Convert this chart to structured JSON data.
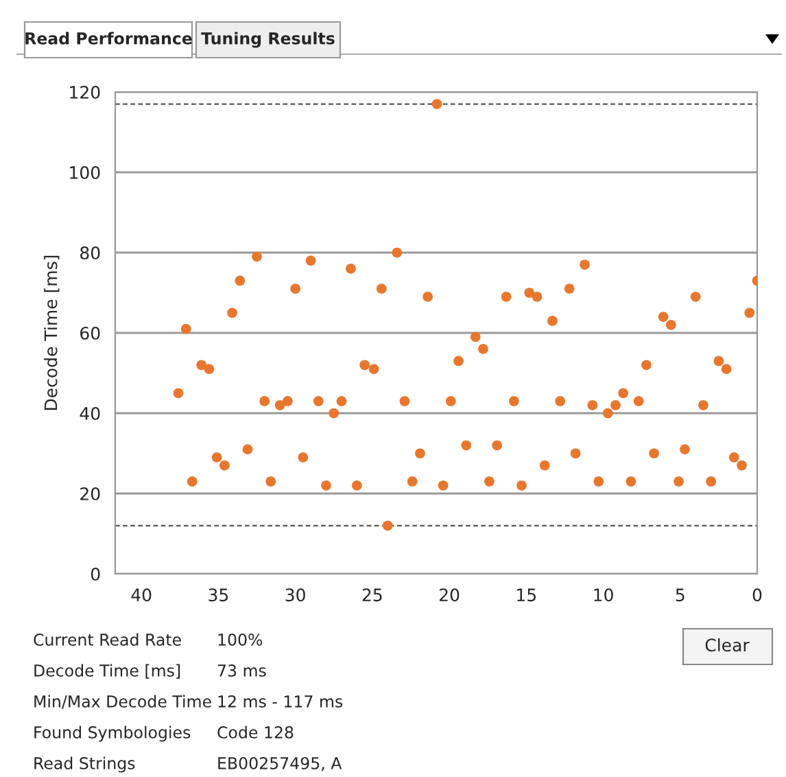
{
  "chart_data": {
    "type": "scatter",
    "ylabel": "Decode Time [ms]",
    "x": [
      37.6,
      37.1,
      36.7,
      36.1,
      35.6,
      35.1,
      34.6,
      34.1,
      33.6,
      33.1,
      32.5,
      32.0,
      31.6,
      31.0,
      30.5,
      30.0,
      29.5,
      29.0,
      28.5,
      28.0,
      27.5,
      27.0,
      26.4,
      26.0,
      25.5,
      24.9,
      24.4,
      24.0,
      23.4,
      22.9,
      22.4,
      21.9,
      21.4,
      20.8,
      20.4,
      19.9,
      19.4,
      18.9,
      18.3,
      17.8,
      17.4,
      16.9,
      16.3,
      15.8,
      15.3,
      14.8,
      14.3,
      13.8,
      13.3,
      12.8,
      12.2,
      11.8,
      11.2,
      10.7,
      10.3,
      9.7,
      9.2,
      8.7,
      8.2,
      7.7,
      7.2,
      6.7,
      6.1,
      5.6,
      5.1,
      4.7,
      4.0,
      3.5,
      3.0,
      2.5,
      2.0,
      1.5,
      1.0,
      0.5,
      0.0
    ],
    "values": [
      45,
      61,
      23,
      52,
      51,
      29,
      27,
      65,
      73,
      31,
      79,
      43,
      23,
      42,
      43,
      71,
      29,
      78,
      43,
      22,
      40,
      43,
      76,
      22,
      52,
      51,
      71,
      12,
      80,
      43,
      23,
      30,
      69,
      117,
      22,
      43,
      53,
      32,
      59,
      56,
      23,
      32,
      69,
      43,
      22,
      70,
      69,
      27,
      63,
      43,
      71,
      30,
      77,
      42,
      23,
      40,
      42,
      45,
      23,
      43,
      52,
      30,
      64,
      62,
      23,
      31,
      69,
      42,
      23,
      53,
      51,
      29,
      27,
      65,
      73
    ],
    "color": "#e8772e",
    "marker": "circle",
    "xlim": [
      41.7,
      0
    ],
    "xticks": [
      40,
      35,
      30,
      25,
      20,
      15,
      10,
      5,
      0
    ],
    "ylim": [
      0,
      120
    ],
    "yticks": [
      0,
      20,
      40,
      60,
      80,
      100,
      120
    ],
    "grid": "y",
    "ref_lines": [
      {
        "axis": "y",
        "value": 117,
        "line_style": "dashed"
      },
      {
        "axis": "y",
        "value": 12,
        "line_style": "dashed"
      }
    ],
    "annotations": [
      "Read Performance",
      "Tuning Results",
      "Clear",
      "Current Read Rate",
      "100%",
      "Decode Time [ms]",
      "73 ms",
      "Min/Max Decode Time",
      "12 ms - 117 ms",
      "Found Symbologies",
      "Code 128",
      "Read Strings",
      "EB00257495, A"
    ]
  }
}
